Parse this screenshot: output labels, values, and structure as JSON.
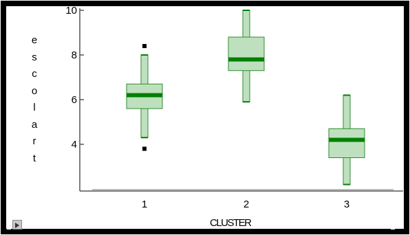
{
  "chart_data": {
    "type": "boxplot",
    "xlabel": "CLUSTER",
    "ylabel": "escolart",
    "categories": [
      "1",
      "2",
      "3"
    ],
    "ylim": [
      2,
      10
    ],
    "yticks": [
      "4",
      "6",
      "8",
      "10"
    ],
    "boxes": [
      {
        "category": "1",
        "whisker_low": 4.3,
        "q1": 5.6,
        "median": 6.2,
        "q3": 6.7,
        "whisker_high": 8.0,
        "outliers": [
          8.4,
          3.8
        ]
      },
      {
        "category": "2",
        "whisker_low": 5.9,
        "q1": 7.3,
        "median": 7.8,
        "q3": 8.8,
        "whisker_high": 10.0,
        "outliers": []
      },
      {
        "category": "3",
        "whisker_low": 2.2,
        "q1": 3.4,
        "median": 4.2,
        "q3": 4.7,
        "whisker_high": 6.2,
        "outliers": []
      }
    ],
    "colors": {
      "box_fill": "#bfe0bf",
      "box_stroke": "#2e8b2e",
      "median": "#008000",
      "outlier": "#000000"
    }
  }
}
